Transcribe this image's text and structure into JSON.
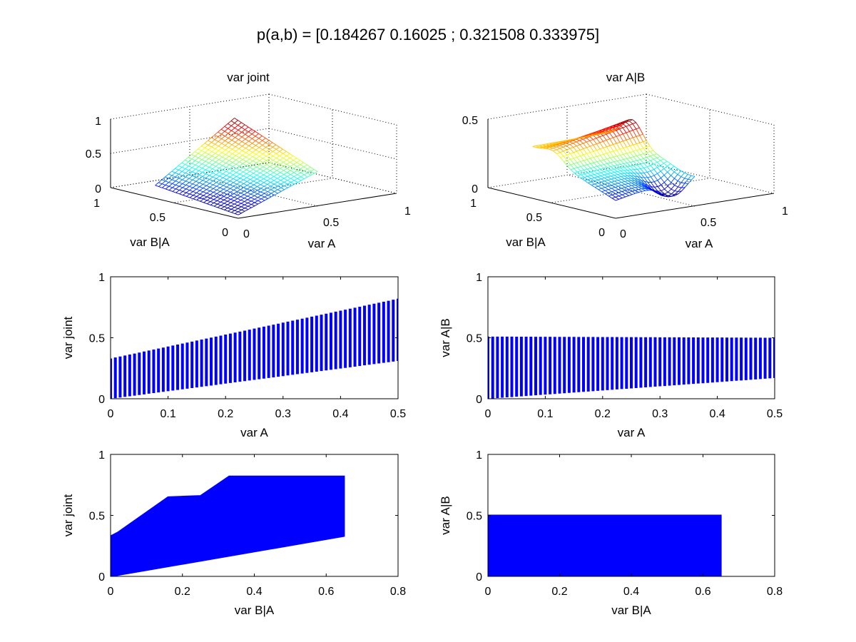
{
  "figure": {
    "suptitle": "p(a,b) = [0.184267 0.16025 ; 0.321508 0.333975]"
  },
  "colors": {
    "scatter": "#0000ff",
    "axes": "#000000"
  },
  "chart_data": [
    {
      "type": "surface",
      "title": "var joint",
      "xlabel": "var A",
      "ylabel": "var B|A",
      "zlabel": "",
      "xticks": [
        "0",
        "0.5",
        "1"
      ],
      "yticks": [
        "0",
        "0.5",
        "1"
      ],
      "zticks": [
        "0",
        "0.5",
        "1"
      ],
      "xlim": [
        0,
        1
      ],
      "ylim": [
        0,
        1
      ],
      "zlim": [
        0,
        1
      ],
      "colormap": "jet",
      "grid": true
    },
    {
      "type": "surface",
      "title": "var A|B",
      "xlabel": "var A",
      "ylabel": "var B|A",
      "zlabel": "",
      "xticks": [
        "0",
        "0.5",
        "1"
      ],
      "yticks": [
        "0",
        "0.5",
        "1"
      ],
      "zticks": [
        "0",
        "0.5"
      ],
      "xlim": [
        0,
        1
      ],
      "ylim": [
        0,
        1
      ],
      "zlim": [
        0,
        0.5
      ],
      "colormap": "jet",
      "grid": true
    },
    {
      "type": "scatter",
      "title": "",
      "xlabel": "var A",
      "ylabel": "var joint",
      "xlim": [
        0,
        0.5
      ],
      "ylim": [
        0,
        1
      ],
      "xticks": [
        "0",
        "0.1",
        "0.2",
        "0.3",
        "0.4",
        "0.5"
      ],
      "yticks": [
        "0",
        "0.5",
        "1"
      ],
      "columns": {
        "count": 61,
        "x_range": [
          0,
          0.5
        ],
        "low": [
          0.0,
          0.31
        ],
        "high": [
          0.33,
          0.82
        ]
      }
    },
    {
      "type": "scatter",
      "title": "",
      "xlabel": "var A",
      "ylabel": "var A|B",
      "xlim": [
        0,
        0.5
      ],
      "ylim": [
        0,
        1
      ],
      "xticks": [
        "0",
        "0.1",
        "0.2",
        "0.3",
        "0.4",
        "0.5"
      ],
      "yticks": [
        "0",
        "0.5",
        "1"
      ],
      "columns": {
        "count": 61,
        "x_range": [
          0,
          0.5
        ],
        "low": [
          0.0,
          0.17
        ],
        "high": [
          0.51,
          0.5
        ]
      }
    },
    {
      "type": "scatter",
      "title": "",
      "xlabel": "var B|A",
      "ylabel": "var joint",
      "xlim": [
        0,
        0.8
      ],
      "ylim": [
        0,
        1
      ],
      "xticks": [
        "0",
        "0.2",
        "0.4",
        "0.6",
        "0.8"
      ],
      "yticks": [
        "0",
        "0.5",
        "1"
      ],
      "region": {
        "upper": [
          [
            0,
            0.33
          ],
          [
            0.02,
            0.36
          ],
          [
            0.16,
            0.65
          ],
          [
            0.25,
            0.66
          ],
          [
            0.33,
            0.82
          ],
          [
            0.65,
            0.82
          ]
        ],
        "lower": [
          [
            0,
            0.0
          ],
          [
            0.65,
            0.33
          ]
        ]
      }
    },
    {
      "type": "scatter",
      "title": "",
      "xlabel": "var B|A",
      "ylabel": "var A|B",
      "xlim": [
        0,
        0.8
      ],
      "ylim": [
        0,
        1
      ],
      "xticks": [
        "0",
        "0.2",
        "0.4",
        "0.6",
        "0.8"
      ],
      "yticks": [
        "0",
        "0.5",
        "1"
      ],
      "region": {
        "upper": [
          [
            0,
            0.5
          ],
          [
            0.65,
            0.5
          ]
        ],
        "lower": [
          [
            0,
            0.0
          ],
          [
            0.65,
            0.0
          ]
        ]
      }
    }
  ]
}
